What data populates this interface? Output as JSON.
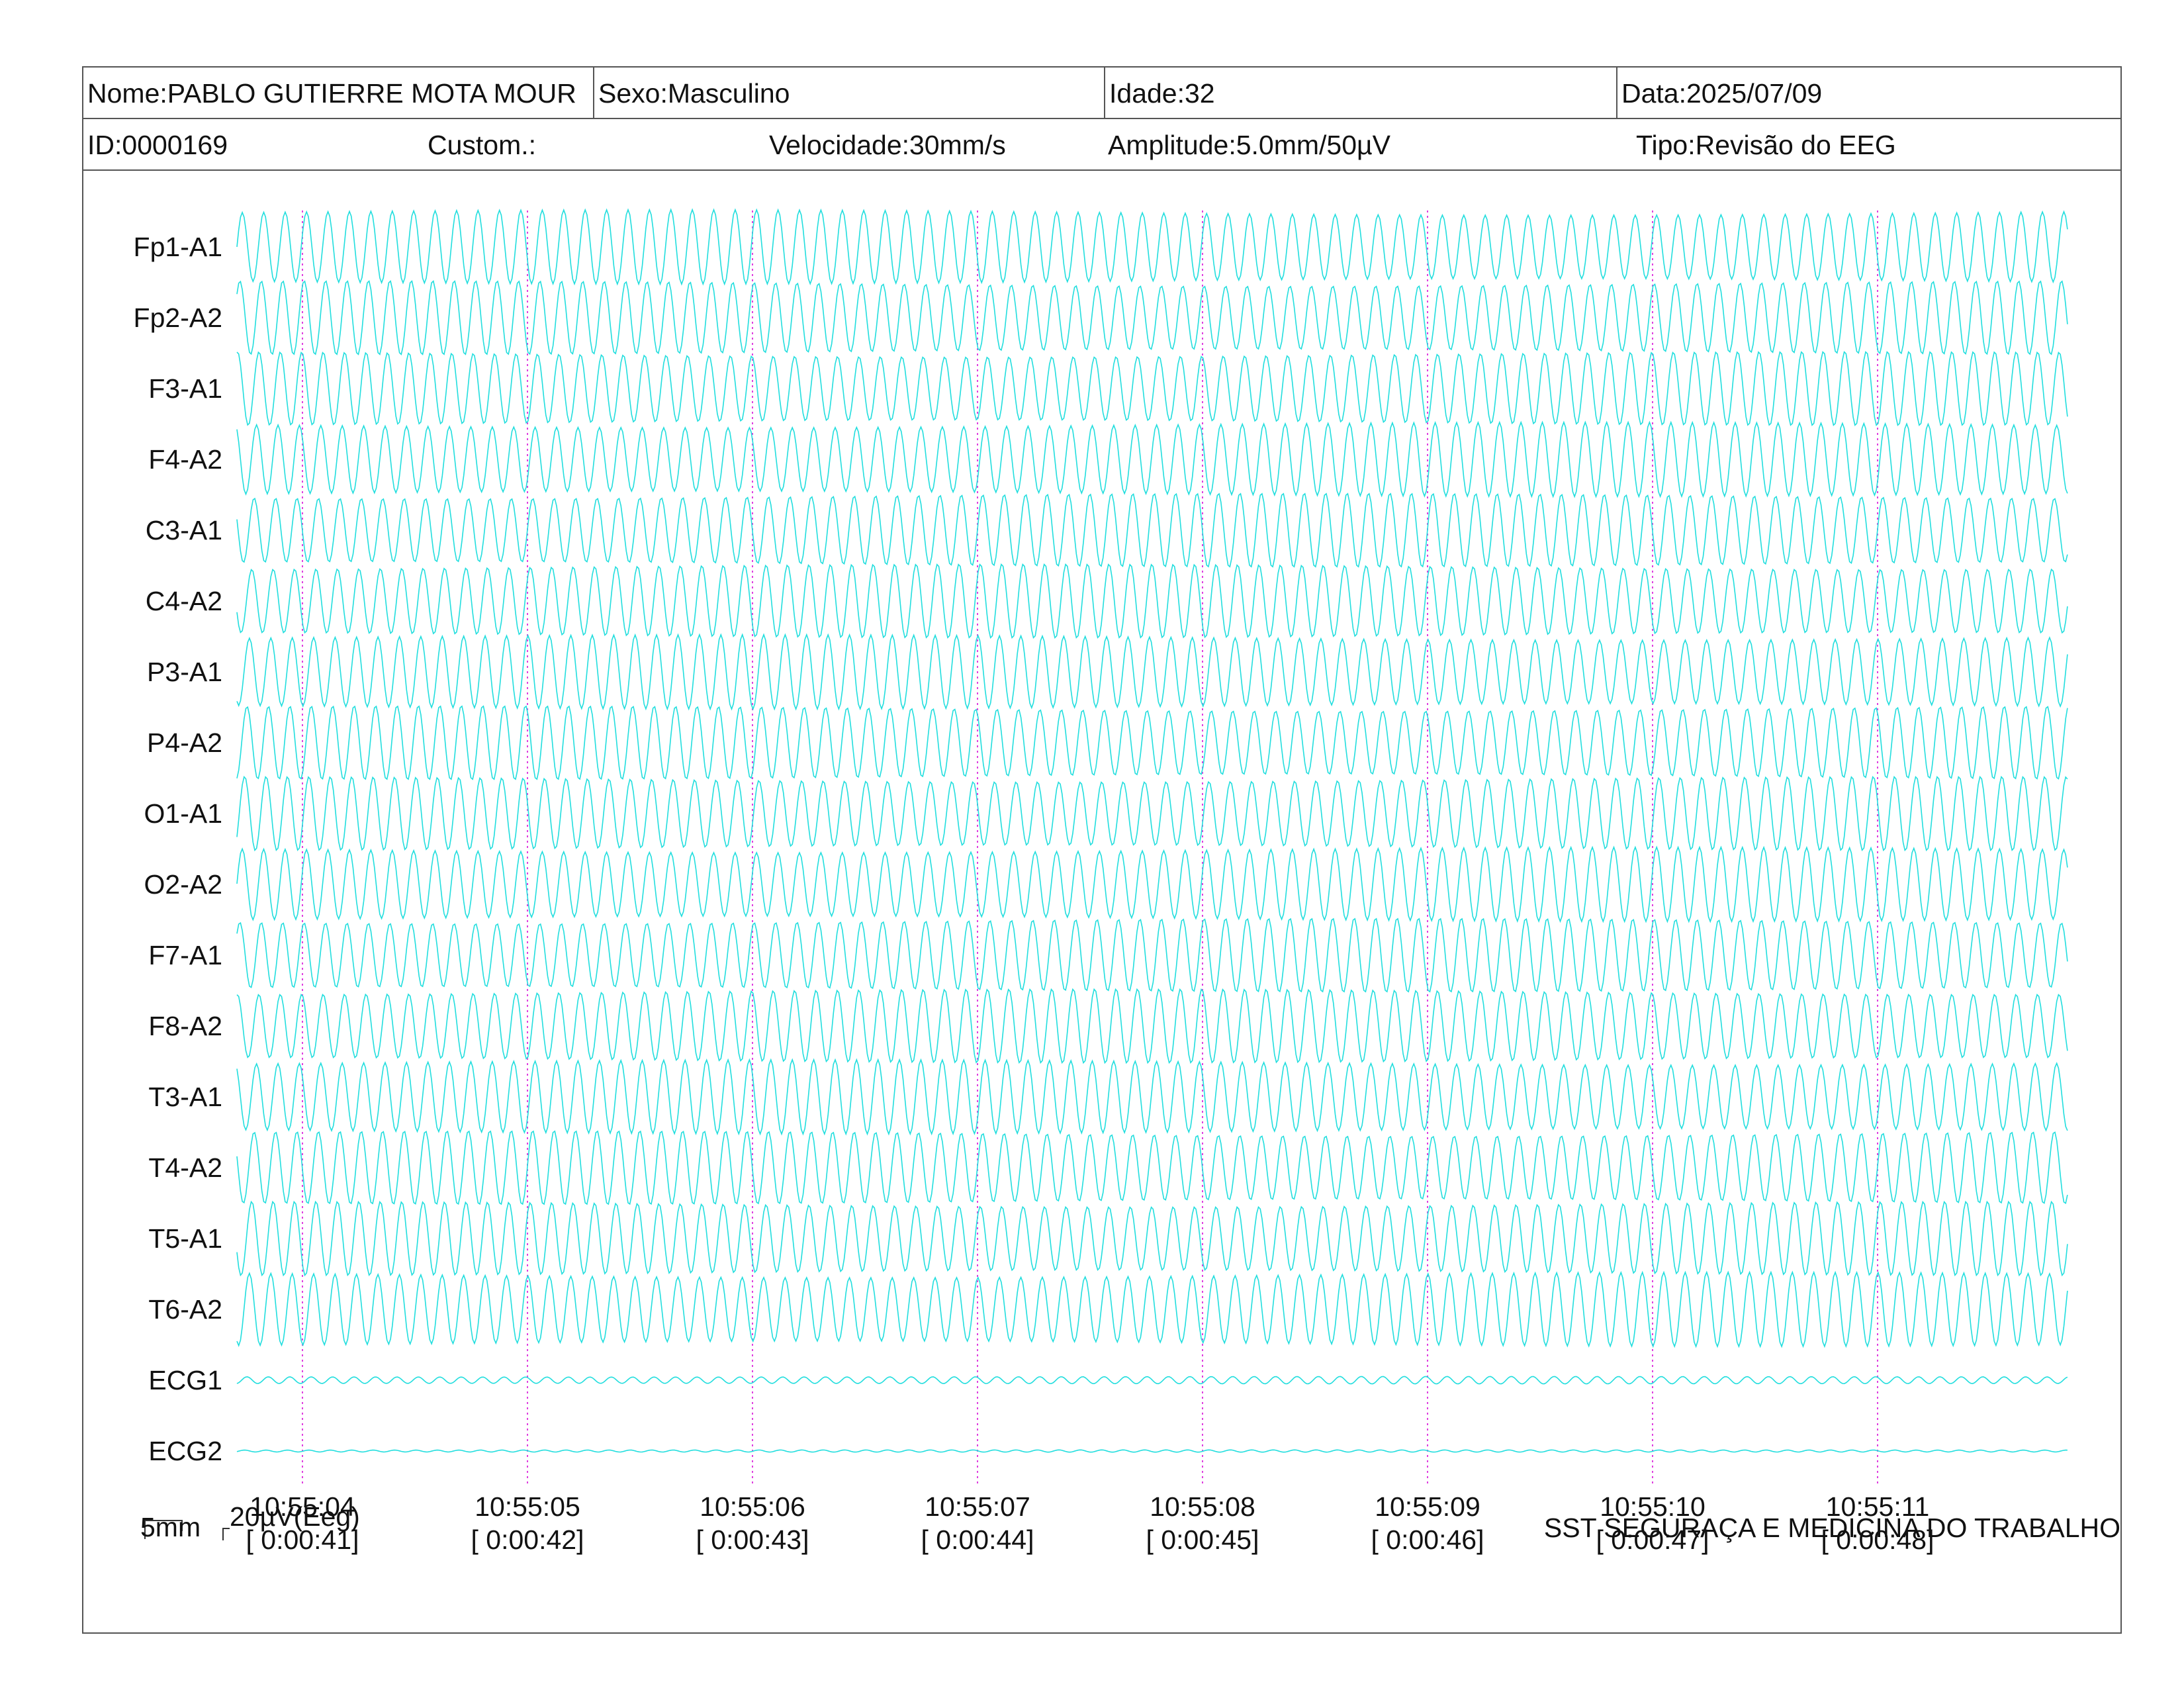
{
  "header": {
    "name": "Nome:PABLO GUTIERRE MOTA MOUR",
    "sex": "Sexo:Masculino",
    "age": "Idade:32",
    "date": "Data:2025/07/09",
    "id": "ID:0000169",
    "custom": "Custom.:",
    "speed": "Velocidade:30mm/s",
    "amplitude": "Amplitude:5.0mm/50µV",
    "type": "Tipo:Revisão do EEG"
  },
  "scale": {
    "length_label": "5mm",
    "amplitude_label": "20µV(Eeg)"
  },
  "footer": {
    "institution": "SST SEGURAÇA E MEDICINA DO TRABALHO"
  },
  "colors": {
    "trace": "#22dede",
    "time_marker": "#e040e0",
    "border": "#555555"
  },
  "chart_data": {
    "type": "line",
    "title": "",
    "xlabel": "",
    "ylabel": "",
    "x_range_seconds": [
      "10:55:03.7",
      "10:55:11.8"
    ],
    "time_ticks": [
      "10:55:04",
      "10:55:05",
      "10:55:06",
      "10:55:07",
      "10:55:08",
      "10:55:09",
      "10:55:10",
      "10:55:11"
    ],
    "elapsed_ticks": [
      "[ 0:00:41]",
      "[ 0:00:42]",
      "[ 0:00:43]",
      "[ 0:00:44]",
      "[ 0:00:45]",
      "[ 0:00:46]",
      "[ 0:00:47]",
      "[ 0:00:48]"
    ],
    "grid": "vertical dotted line at each second",
    "series": [
      {
        "name": "Fp1-A1",
        "amplitude": 1.0,
        "frequency_hz": 10.5
      },
      {
        "name": "Fp2-A2",
        "amplitude": 1.0,
        "frequency_hz": 10.5
      },
      {
        "name": "F3-A1",
        "amplitude": 1.0,
        "frequency_hz": 10.5
      },
      {
        "name": "F4-A2",
        "amplitude": 1.0,
        "frequency_hz": 10.5
      },
      {
        "name": "C3-A1",
        "amplitude": 1.0,
        "frequency_hz": 10.5
      },
      {
        "name": "C4-A2",
        "amplitude": 1.0,
        "frequency_hz": 10.5
      },
      {
        "name": "P3-A1",
        "amplitude": 1.0,
        "frequency_hz": 10.5
      },
      {
        "name": "P4-A2",
        "amplitude": 1.0,
        "frequency_hz": 10.5
      },
      {
        "name": "O1-A1",
        "amplitude": 1.0,
        "frequency_hz": 10.5
      },
      {
        "name": "O2-A2",
        "amplitude": 1.0,
        "frequency_hz": 10.5
      },
      {
        "name": "F7-A1",
        "amplitude": 1.0,
        "frequency_hz": 10.5
      },
      {
        "name": "F8-A2",
        "amplitude": 1.0,
        "frequency_hz": 10.5
      },
      {
        "name": "T3-A1",
        "amplitude": 1.0,
        "frequency_hz": 10.5
      },
      {
        "name": "T4-A2",
        "amplitude": 1.0,
        "frequency_hz": 10.5
      },
      {
        "name": "T5-A1",
        "amplitude": 1.0,
        "frequency_hz": 10.5
      },
      {
        "name": "T6-A2",
        "amplitude": 1.0,
        "frequency_hz": 10.5
      },
      {
        "name": "ECG1",
        "amplitude": 0.1,
        "frequency_hz": 10.5
      },
      {
        "name": "ECG2",
        "amplitude": 0.03,
        "frequency_hz": 10.5
      }
    ]
  }
}
